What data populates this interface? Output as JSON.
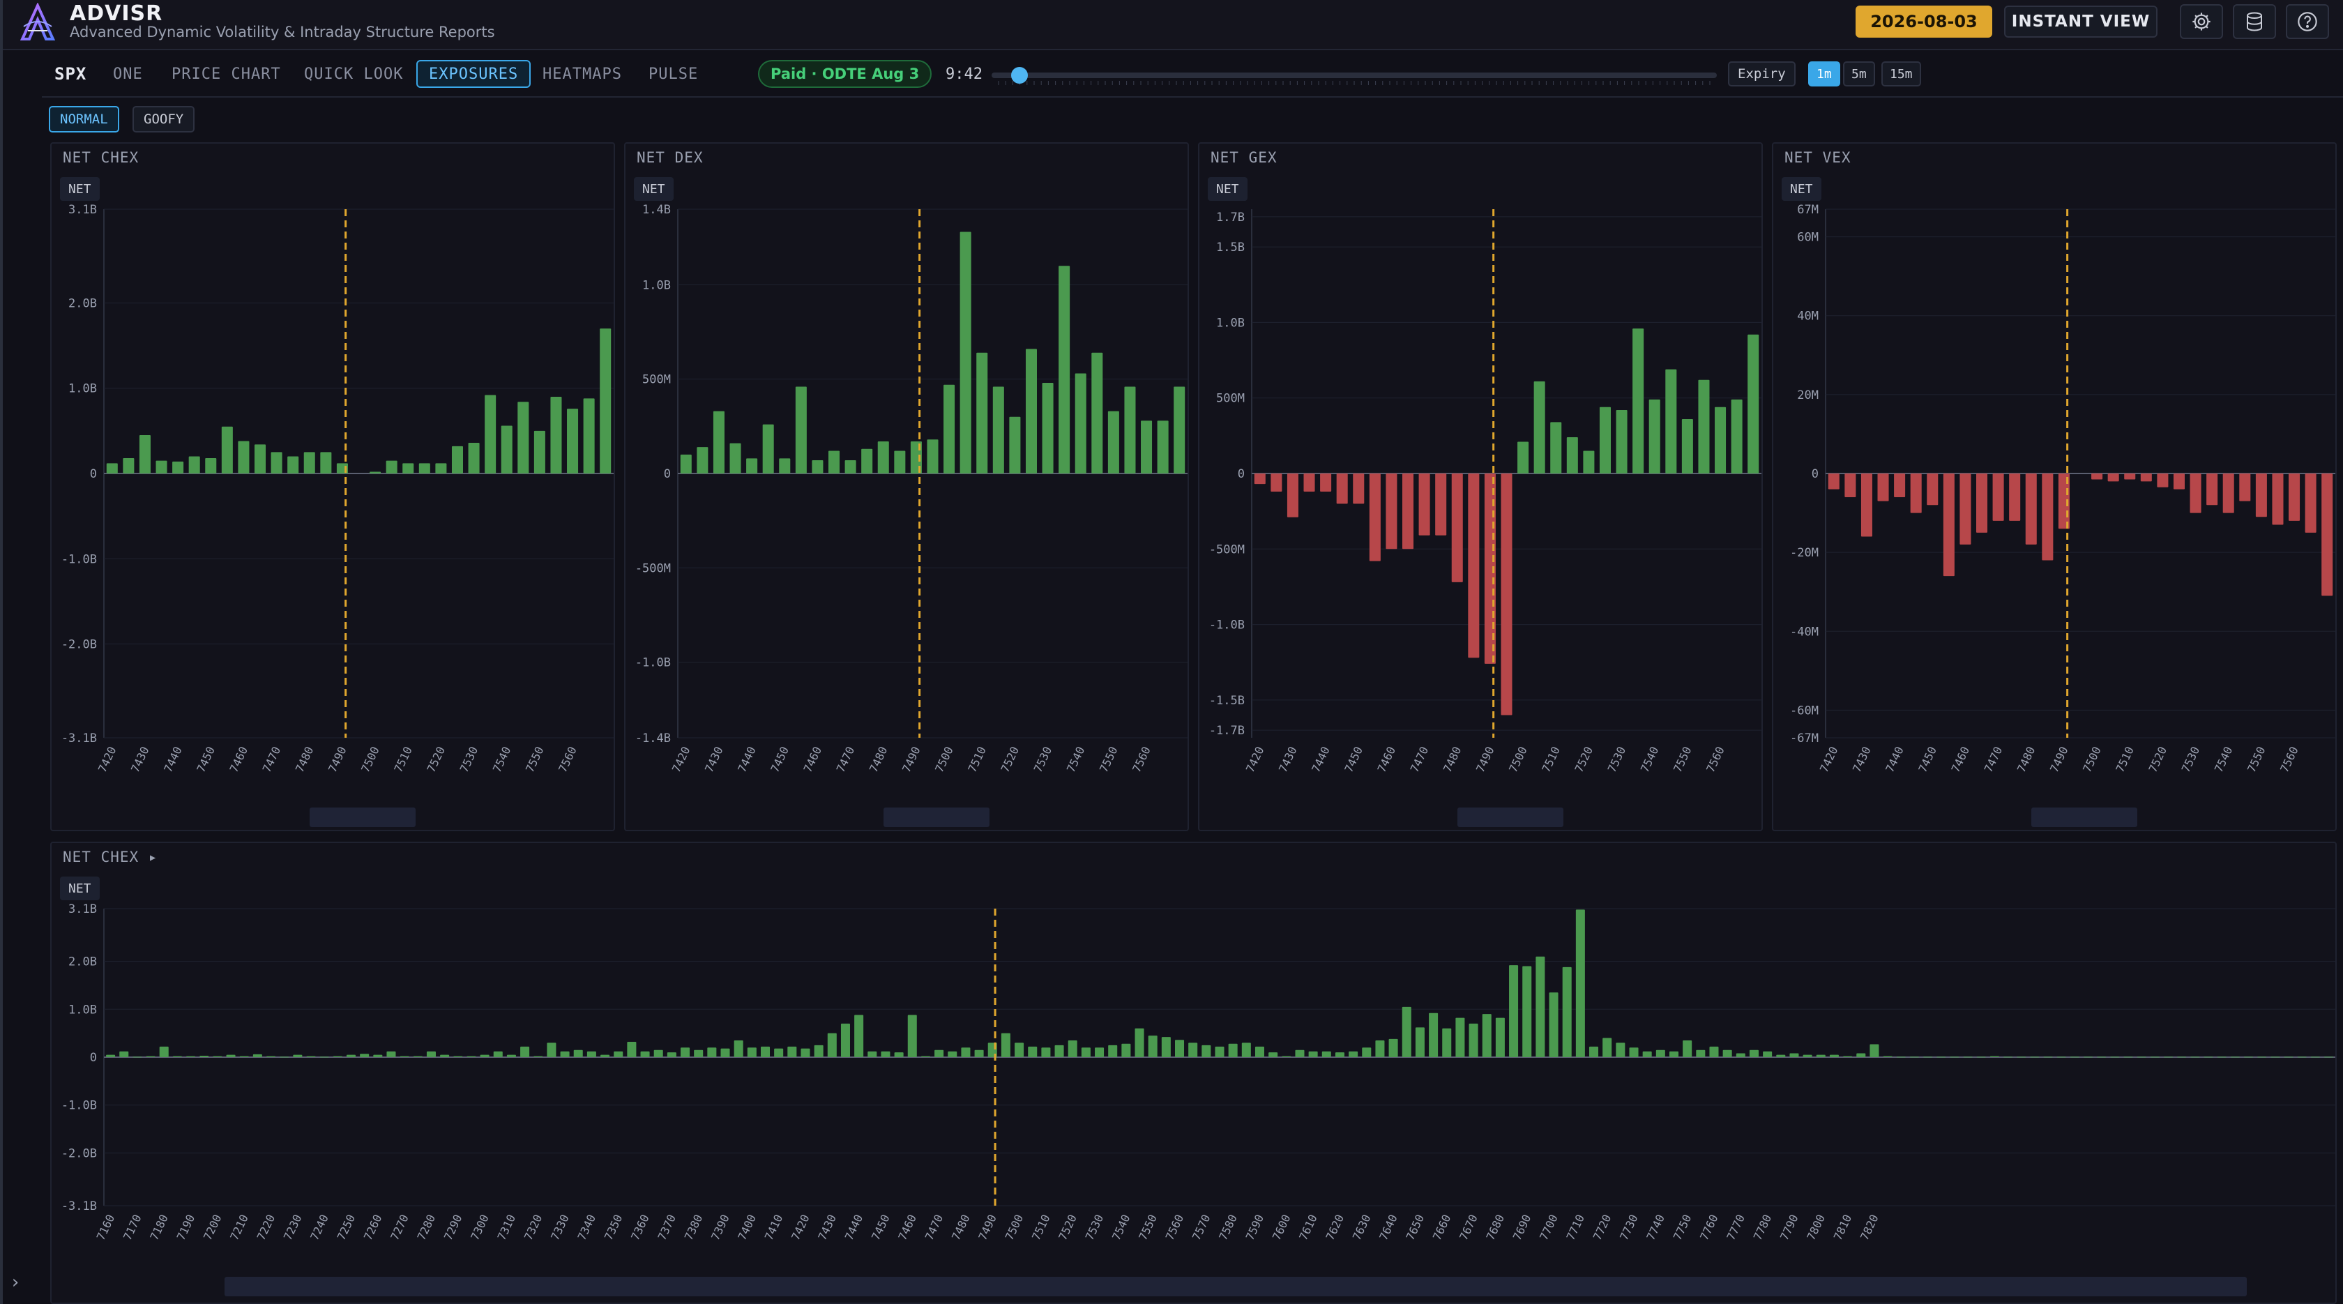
{
  "app": {
    "title": "ADVISR",
    "subtitle": "Advanced Dynamic Volatility & Intraday Structure Reports"
  },
  "header": {
    "date": "2026-08-03",
    "instant_view": "INSTANT VIEW"
  },
  "nav": {
    "symbol": "SPX",
    "tabs": [
      {
        "label": "ONE",
        "active": false
      },
      {
        "label": "PRICE CHART",
        "active": false
      },
      {
        "label": "QUICK LOOK",
        "active": false
      },
      {
        "label": "EXPOSURES",
        "active": true
      },
      {
        "label": "HEATMAPS",
        "active": false
      },
      {
        "label": "PULSE",
        "active": false
      }
    ],
    "badge": "Paid · ODTE Aug 3",
    "time": "9:42",
    "expiry": "Expiry",
    "timeframes": [
      {
        "label": "1m",
        "active": true
      },
      {
        "label": "5m",
        "active": false
      },
      {
        "label": "15m",
        "active": false
      }
    ]
  },
  "modes": [
    {
      "label": "NORMAL",
      "active": true
    },
    {
      "label": "GOOFY",
      "active": false
    }
  ],
  "colors": {
    "positive": "#4b9a4f",
    "negative": "#b7474a",
    "spot_line": "#e0a72e"
  },
  "chart_data": [
    {
      "type": "bar",
      "title": "NET CHEX",
      "chip": "NET",
      "x_start": 7420,
      "x_step": 5,
      "x_tick_labels": [
        "7420",
        "7430",
        "7440",
        "7450",
        "7460",
        "7470",
        "7480",
        "7490",
        "7500",
        "7510",
        "7520",
        "7530",
        "7540",
        "7550",
        "7560"
      ],
      "y_tick_labels": [
        "3.1B",
        "2.0B",
        "1.0B",
        "0",
        "-1.0B",
        "-2.0B",
        "-3.1B"
      ],
      "y_tick_values": [
        3.1,
        2.0,
        1.0,
        0,
        -1.0,
        -2.0,
        -3.1
      ],
      "ylim": [
        -3.1,
        3.1
      ],
      "spot": 7491,
      "values": [
        0.12,
        0.18,
        0.45,
        0.15,
        0.14,
        0.2,
        0.18,
        0.55,
        0.38,
        0.34,
        0.25,
        0.2,
        0.25,
        0.25,
        0.12,
        0,
        0.02,
        0.15,
        0.12,
        0.12,
        0.12,
        0.32,
        0.36,
        0.92,
        0.56,
        0.84,
        0.5,
        0.9,
        0.76,
        0.88,
        1.7
      ]
    },
    {
      "type": "bar",
      "title": "NET DEX",
      "chip": "NET",
      "x_start": 7420,
      "x_step": 5,
      "x_tick_labels": [
        "7420",
        "7430",
        "7440",
        "7450",
        "7460",
        "7470",
        "7480",
        "7490",
        "7500",
        "7510",
        "7520",
        "7530",
        "7540",
        "7550",
        "7560"
      ],
      "y_tick_labels": [
        "1.4B",
        "1.0B",
        "500M",
        "0",
        "-500M",
        "-1.0B",
        "-1.4B"
      ],
      "y_tick_values": [
        1.4,
        1.0,
        0.5,
        0,
        -0.5,
        -1.0,
        -1.4
      ],
      "ylim": [
        -1.4,
        1.4
      ],
      "spot": 7491,
      "values": [
        0.1,
        0.14,
        0.33,
        0.16,
        0.08,
        0.26,
        0.08,
        0.46,
        0.07,
        0.12,
        0.07,
        0.13,
        0.17,
        0.12,
        0.17,
        0.18,
        0.47,
        1.28,
        0.64,
        0.46,
        0.3,
        0.66,
        0.48,
        1.1,
        0.53,
        0.64,
        0.33,
        0.46,
        0.28,
        0.28,
        0.46
      ]
    },
    {
      "type": "bar",
      "title": "NET GEX",
      "chip": "NET",
      "x_start": 7420,
      "x_step": 5,
      "x_tick_labels": [
        "7420",
        "7430",
        "7440",
        "7450",
        "7460",
        "7470",
        "7480",
        "7490",
        "7500",
        "7510",
        "7520",
        "7530",
        "7540",
        "7550",
        "7560"
      ],
      "y_tick_labels": [
        "1.7B",
        "1.5B",
        "1.0B",
        "500M",
        "0",
        "-500M",
        "-1.0B",
        "-1.5B",
        "-1.7B"
      ],
      "y_tick_values": [
        1.7,
        1.5,
        1.0,
        0.5,
        0,
        -0.5,
        -1.0,
        -1.5,
        -1.7
      ],
      "ylim": [
        -1.75,
        1.75
      ],
      "spot": 7491,
      "values": [
        -0.07,
        -0.12,
        -0.29,
        -0.12,
        -0.12,
        -0.2,
        -0.2,
        -0.58,
        -0.5,
        -0.5,
        -0.41,
        -0.41,
        -0.72,
        -1.22,
        -1.26,
        -1.6,
        0.21,
        0.61,
        0.34,
        0.24,
        0.15,
        0.44,
        0.42,
        0.96,
        0.49,
        0.69,
        0.36,
        0.62,
        0.44,
        0.49,
        0.92
      ]
    },
    {
      "type": "bar",
      "title": "NET VEX",
      "chip": "NET",
      "x_start": 7420,
      "x_step": 5,
      "x_tick_labels": [
        "7420",
        "7430",
        "7440",
        "7450",
        "7460",
        "7470",
        "7480",
        "7490",
        "7500",
        "7510",
        "7520",
        "7530",
        "7540",
        "7550",
        "7560"
      ],
      "y_tick_labels": [
        "67M",
        "60M",
        "40M",
        "20M",
        "0",
        "-20M",
        "-40M",
        "-60M",
        "-67M"
      ],
      "y_tick_values": [
        67,
        60,
        40,
        20,
        0,
        -20,
        -40,
        -60,
        -67
      ],
      "ylim": [
        -67,
        67
      ],
      "spot": 7491,
      "values": [
        -4,
        -6,
        -16,
        -7,
        -6,
        -10,
        -8,
        -26,
        -18,
        -15,
        -12,
        -12,
        -18,
        -22,
        -14,
        0,
        -1.5,
        -2,
        -1.5,
        -2,
        -3.5,
        -4,
        -10,
        -8,
        -10,
        -7,
        -11,
        -13,
        -12,
        -15,
        -31
      ]
    },
    {
      "type": "bar",
      "title": "NET CHEX ▸",
      "chip": "NET",
      "x_start": 7160,
      "x_step": 5,
      "x_tick_labels": [
        "7160",
        "7170",
        "7180",
        "7190",
        "7200",
        "7210",
        "7220",
        "7230",
        "7240",
        "7250",
        "7260",
        "7270",
        "7280",
        "7290",
        "7300",
        "7310",
        "7320",
        "7330",
        "7340",
        "7350",
        "7360",
        "7370",
        "7380",
        "7390",
        "7400",
        "7410",
        "7420",
        "7430",
        "7440",
        "7450",
        "7460",
        "7470",
        "7480",
        "7490",
        "7500",
        "7510",
        "7520",
        "7530",
        "7540",
        "7550",
        "7560",
        "7570",
        "7580",
        "7590",
        "7600",
        "7610",
        "7620",
        "7630",
        "7640",
        "7650",
        "7660",
        "7670",
        "7680",
        "7690",
        "7700",
        "7710",
        "7720",
        "7730",
        "7740",
        "7750",
        "7760",
        "7770",
        "7780",
        "7790",
        "7800",
        "7810",
        "7820"
      ],
      "y_tick_labels": [
        "3.1B",
        "2.0B",
        "1.0B",
        "0",
        "-1.0B",
        "-2.0B",
        "-3.1B"
      ],
      "y_tick_values": [
        3.1,
        2.0,
        1.0,
        0,
        -1.0,
        -2.0,
        -3.1
      ],
      "ylim": [
        -3.1,
        3.1
      ],
      "spot": 7491,
      "values": [
        0.05,
        0.12,
        0.01,
        0.02,
        0.22,
        0.02,
        0.02,
        0.03,
        0.02,
        0.05,
        0.02,
        0.06,
        0.02,
        0.01,
        0.05,
        0.02,
        0.01,
        0.02,
        0.05,
        0.07,
        0.05,
        0.12,
        0.02,
        0.02,
        0.12,
        0.05,
        0.02,
        0.02,
        0.05,
        0.12,
        0.05,
        0.22,
        0.02,
        0.3,
        0.12,
        0.15,
        0.12,
        0.05,
        0.12,
        0.32,
        0.12,
        0.15,
        0.1,
        0.2,
        0.15,
        0.2,
        0.18,
        0.35,
        0.2,
        0.22,
        0.18,
        0.22,
        0.18,
        0.25,
        0.5,
        0.7,
        0.88,
        0.12,
        0.12,
        0.1,
        0.88,
        0.02,
        0.15,
        0.12,
        0.2,
        0.15,
        0.3,
        0.5,
        0.3,
        0.22,
        0.2,
        0.25,
        0.35,
        0.2,
        0.2,
        0.25,
        0.28,
        0.6,
        0.45,
        0.42,
        0.36,
        0.3,
        0.25,
        0.22,
        0.28,
        0.3,
        0.22,
        0.1,
        0.02,
        0.15,
        0.12,
        0.12,
        0.1,
        0.12,
        0.2,
        0.35,
        0.38,
        1.05,
        0.62,
        0.92,
        0.6,
        0.82,
        0.7,
        0.9,
        0.82,
        1.92,
        1.9,
        2.1,
        1.35,
        1.88,
        3.08,
        0.22,
        0.4,
        0.3,
        0.2,
        0.12,
        0.15,
        0.12,
        0.35,
        0.15,
        0.22,
        0.15,
        0.08,
        0.15,
        0.12,
        0.05,
        0.08,
        0.05,
        0.05,
        0.05,
        0.02,
        0.08,
        0.27,
        0.02,
        0.01,
        0.01,
        0.01,
        0.01,
        0.01,
        0.01,
        0.01,
        0.02,
        0.01,
        0.01,
        0.01,
        0.01,
        0.01,
        0.01,
        0.01,
        0.01,
        0.01,
        0.01,
        0.01,
        0.01,
        0.01,
        0.01,
        0.01,
        0.01,
        0.01,
        0.01,
        0.01,
        0.01,
        0.01,
        0.01,
        0.01,
        0.01,
        0.01
      ]
    }
  ]
}
